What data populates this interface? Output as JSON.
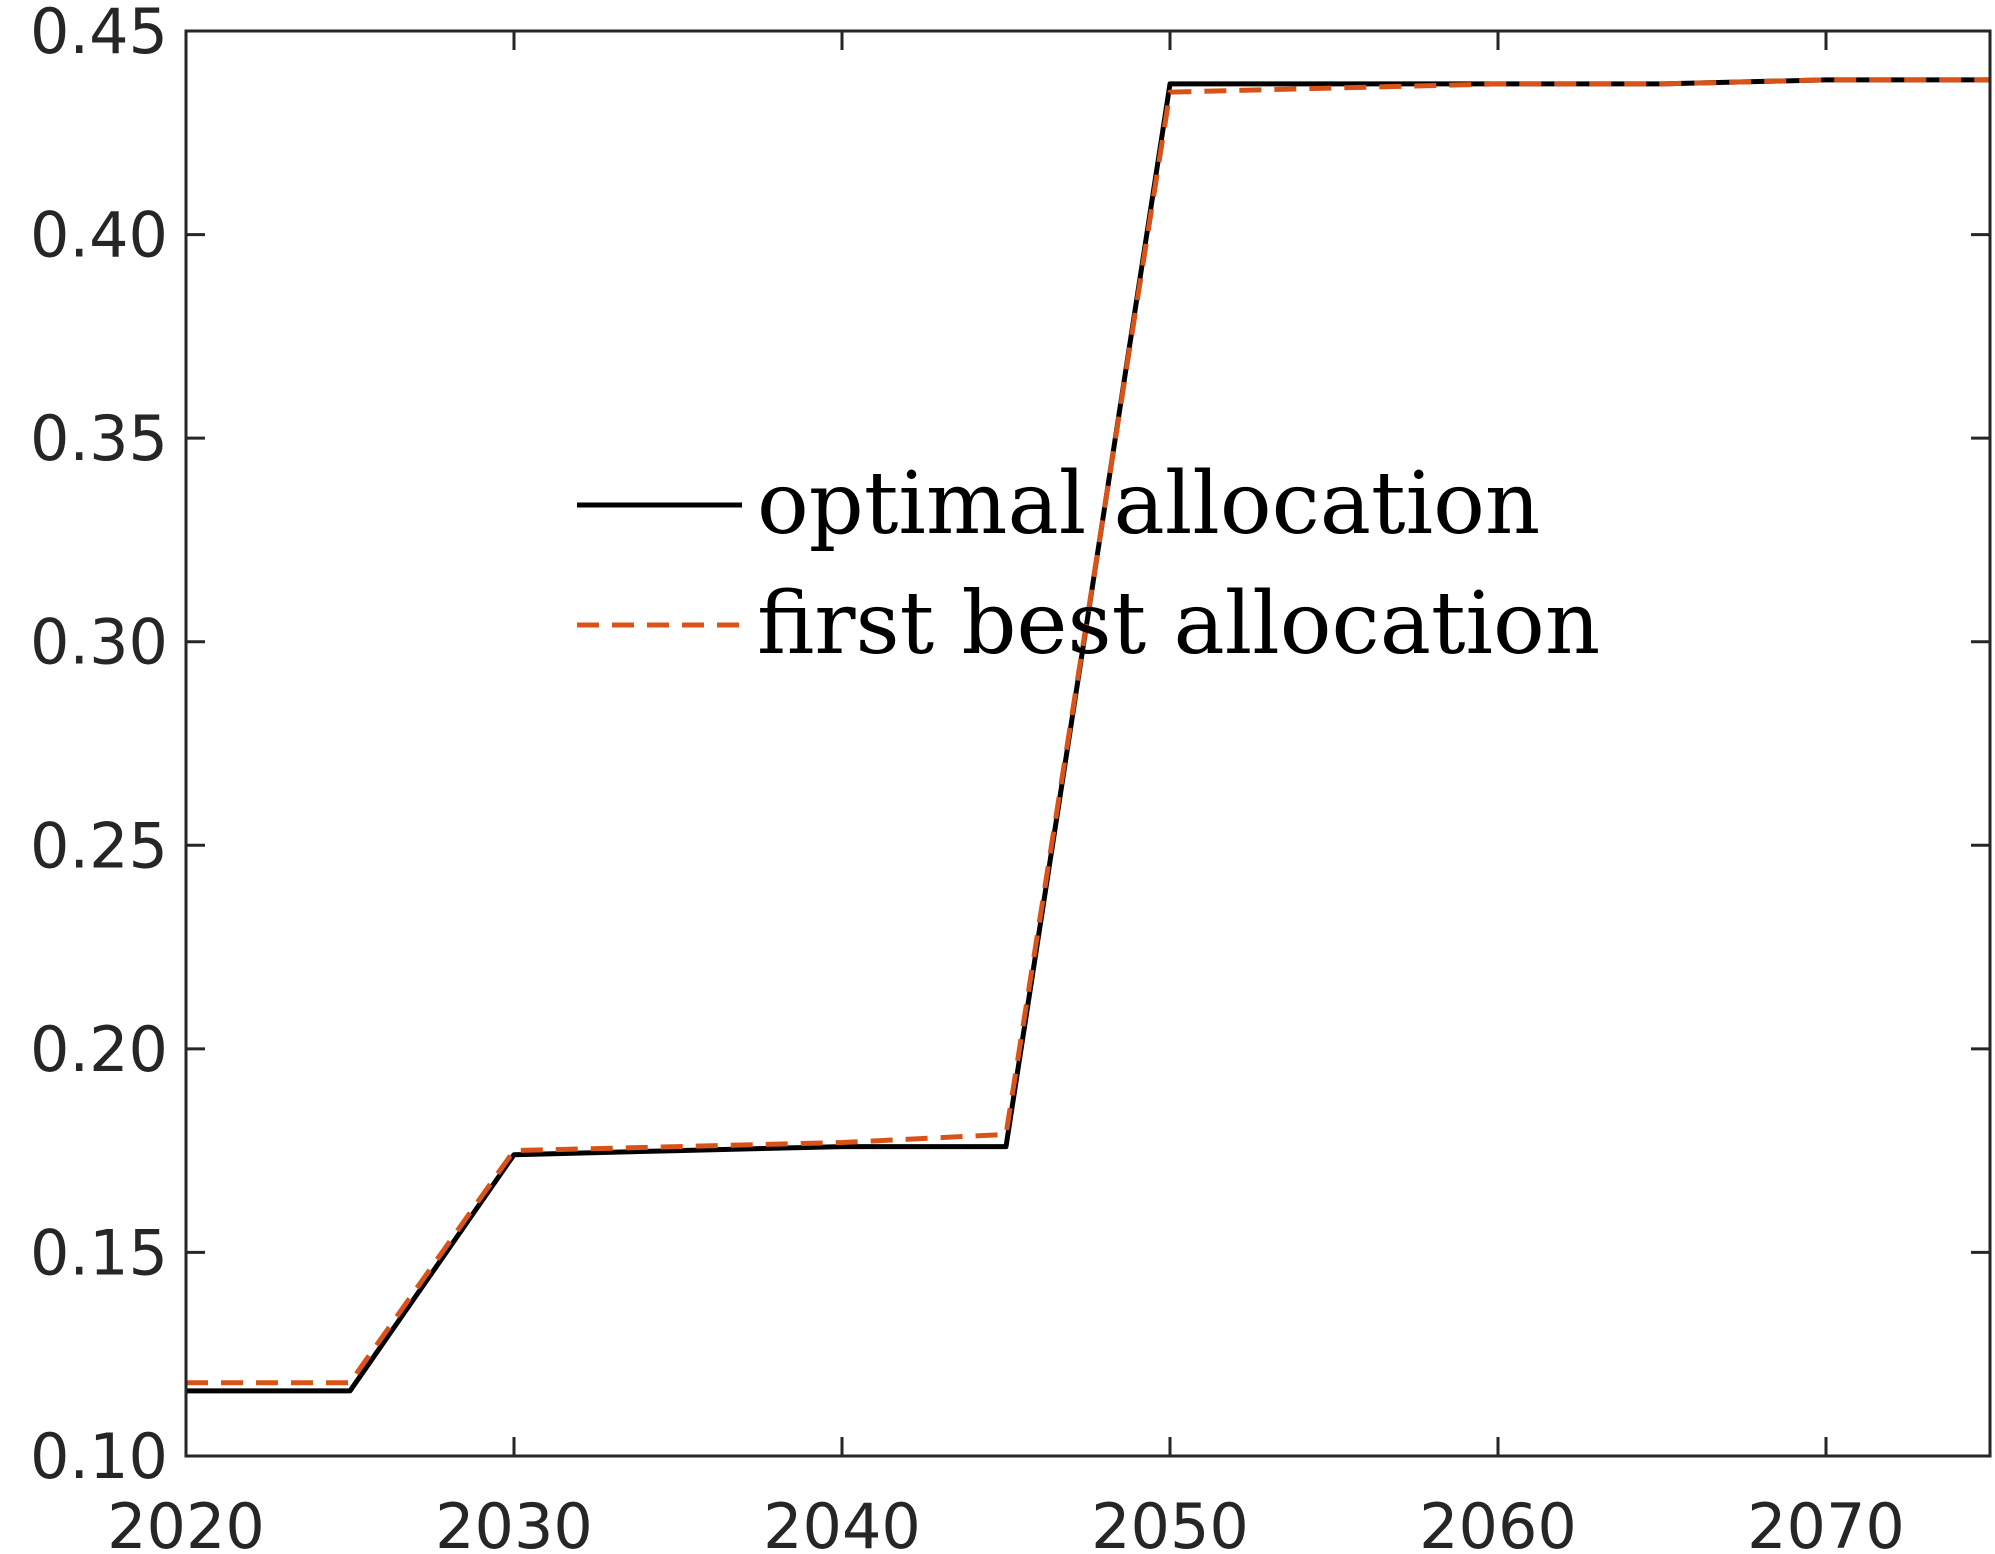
{
  "chart_data": {
    "type": "line",
    "title": "",
    "xlabel": "",
    "ylabel": "",
    "xlim": [
      2020,
      2075
    ],
    "ylim": [
      0.1,
      0.45
    ],
    "xticks": [
      2020,
      2030,
      2040,
      2050,
      2060,
      2070
    ],
    "yticks": [
      0.1,
      0.15,
      0.2,
      0.25,
      0.3,
      0.35,
      0.4,
      0.45
    ],
    "xtick_labels": [
      "2020",
      "2030",
      "2040",
      "2050",
      "2060",
      "2070"
    ],
    "ytick_labels": [
      "0.10",
      "0.15",
      "0.20",
      "0.25",
      "0.30",
      "0.35",
      "0.40",
      "0.45"
    ],
    "grid": false,
    "legend_position": "center",
    "series": [
      {
        "name": "optimal allocation",
        "color": "#000000",
        "style": "solid",
        "x": [
          2020,
          2025,
          2030,
          2035,
          2040,
          2045,
          2050,
          2055,
          2060,
          2065,
          2070,
          2075
        ],
        "y": [
          0.116,
          0.116,
          0.174,
          0.175,
          0.176,
          0.176,
          0.437,
          0.437,
          0.437,
          0.437,
          0.438,
          0.438
        ]
      },
      {
        "name": "first best allocation",
        "color": "#D95319",
        "style": "dashed",
        "x": [
          2020,
          2025,
          2030,
          2035,
          2040,
          2045,
          2050,
          2055,
          2060,
          2065,
          2070,
          2075
        ],
        "y": [
          0.118,
          0.118,
          0.175,
          0.176,
          0.177,
          0.179,
          0.435,
          0.436,
          0.437,
          0.437,
          0.438,
          0.438
        ]
      }
    ]
  }
}
